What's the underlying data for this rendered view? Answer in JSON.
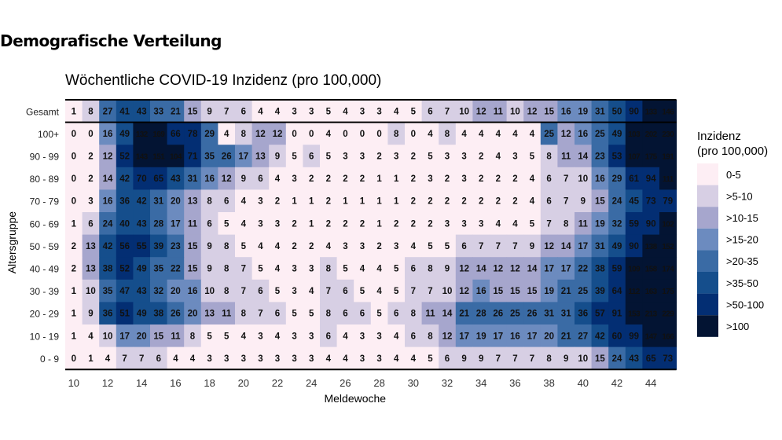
{
  "page": {
    "heading": "Demografische Verteilung"
  },
  "chart_data": {
    "type": "heatmap",
    "title": "Wöchentliche COVID-19 Inzidenz (pro 100,000)",
    "xlabel": "Meldewoche",
    "ylabel": "Altersgruppe",
    "x": [
      10,
      11,
      12,
      13,
      14,
      15,
      16,
      17,
      18,
      19,
      20,
      21,
      22,
      23,
      24,
      25,
      26,
      27,
      28,
      29,
      30,
      31,
      32,
      33,
      34,
      35,
      36,
      37,
      38,
      39,
      40,
      41,
      42,
      43,
      44,
      45
    ],
    "x_ticks": [
      10,
      12,
      14,
      16,
      18,
      20,
      22,
      24,
      26,
      28,
      30,
      32,
      34,
      36,
      38,
      40,
      42,
      44
    ],
    "rows": [
      {
        "label": "Gesamt",
        "values": [
          1,
          8,
          27,
          41,
          43,
          33,
          21,
          15,
          9,
          7,
          6,
          4,
          4,
          3,
          3,
          5,
          4,
          3,
          3,
          4,
          5,
          6,
          7,
          10,
          12,
          11,
          10,
          12,
          15,
          16,
          19,
          31,
          50,
          90,
          133,
          146
        ]
      },
      {
        "label": "100+",
        "values": [
          0,
          0,
          16,
          49,
          132,
          169,
          66,
          78,
          29,
          4,
          8,
          12,
          12,
          0,
          0,
          4,
          0,
          0,
          0,
          8,
          0,
          4,
          8,
          4,
          4,
          4,
          4,
          4,
          25,
          12,
          16,
          25,
          49,
          103,
          202,
          230
        ]
      },
      {
        "label": "90 - 99",
        "values": [
          0,
          2,
          12,
          52,
          143,
          151,
          104,
          71,
          35,
          26,
          17,
          13,
          9,
          5,
          6,
          5,
          3,
          3,
          2,
          3,
          2,
          5,
          3,
          3,
          2,
          4,
          3,
          5,
          8,
          11,
          14,
          23,
          53,
          107,
          175,
          191
        ]
      },
      {
        "label": "80 - 89",
        "values": [
          0,
          2,
          14,
          42,
          70,
          65,
          43,
          31,
          16,
          12,
          9,
          6,
          4,
          3,
          2,
          2,
          2,
          2,
          1,
          1,
          2,
          3,
          2,
          3,
          2,
          2,
          2,
          4,
          6,
          7,
          10,
          16,
          29,
          61,
          94,
          111
        ]
      },
      {
        "label": "70 - 79",
        "values": [
          0,
          3,
          16,
          36,
          42,
          31,
          20,
          13,
          8,
          6,
          4,
          3,
          2,
          1,
          1,
          2,
          1,
          1,
          1,
          1,
          2,
          2,
          2,
          2,
          2,
          2,
          2,
          4,
          6,
          7,
          9,
          15,
          24,
          45,
          73,
          79
        ]
      },
      {
        "label": "60 - 69",
        "values": [
          1,
          6,
          24,
          40,
          43,
          28,
          17,
          11,
          6,
          5,
          4,
          3,
          3,
          2,
          1,
          2,
          2,
          2,
          1,
          2,
          2,
          2,
          3,
          3,
          3,
          4,
          4,
          5,
          7,
          8,
          11,
          19,
          32,
          59,
          90,
          102
        ]
      },
      {
        "label": "50 - 59",
        "values": [
          2,
          13,
          42,
          56,
          55,
          39,
          23,
          15,
          9,
          8,
          5,
          4,
          4,
          2,
          2,
          4,
          3,
          3,
          2,
          3,
          4,
          5,
          5,
          6,
          7,
          7,
          7,
          9,
          12,
          14,
          17,
          31,
          49,
          90,
          138,
          152
        ]
      },
      {
        "label": "40 - 49",
        "values": [
          2,
          13,
          38,
          52,
          49,
          35,
          22,
          15,
          9,
          8,
          7,
          5,
          4,
          3,
          3,
          8,
          5,
          4,
          4,
          5,
          6,
          8,
          9,
          12,
          14,
          12,
          12,
          14,
          17,
          17,
          22,
          38,
          59,
          109,
          158,
          174
        ]
      },
      {
        "label": "30 - 39",
        "values": [
          1,
          10,
          35,
          47,
          43,
          32,
          20,
          16,
          10,
          8,
          7,
          6,
          5,
          3,
          4,
          7,
          6,
          5,
          4,
          5,
          7,
          7,
          10,
          12,
          16,
          15,
          15,
          15,
          19,
          21,
          25,
          39,
          64,
          112,
          163,
          175
        ]
      },
      {
        "label": "20 - 29",
        "values": [
          1,
          9,
          36,
          51,
          49,
          38,
          26,
          20,
          13,
          11,
          8,
          7,
          6,
          5,
          5,
          8,
          6,
          6,
          5,
          6,
          8,
          11,
          14,
          21,
          28,
          26,
          25,
          26,
          31,
          31,
          36,
          57,
          91,
          153,
          213,
          229
        ]
      },
      {
        "label": "10 - 19",
        "values": [
          1,
          4,
          10,
          17,
          20,
          15,
          11,
          8,
          5,
          5,
          4,
          3,
          4,
          3,
          3,
          6,
          4,
          3,
          3,
          4,
          6,
          8,
          12,
          17,
          19,
          17,
          16,
          17,
          20,
          21,
          27,
          42,
          60,
          99,
          147,
          166
        ]
      },
      {
        "label": "0 - 9",
        "values": [
          0,
          1,
          4,
          7,
          7,
          6,
          4,
          4,
          3,
          3,
          3,
          3,
          3,
          3,
          3,
          4,
          4,
          3,
          3,
          4,
          4,
          5,
          6,
          9,
          9,
          7,
          7,
          7,
          8,
          9,
          10,
          15,
          24,
          43,
          65,
          73
        ]
      }
    ],
    "legend": {
      "title_line1": "Inzidenz",
      "title_line2": "(pro 100,000)",
      "placement": "right",
      "bins": [
        {
          "label": "0-5",
          "max": 5,
          "color": "#fdeef4"
        },
        {
          "label": ">5-10",
          "max": 10,
          "color": "#d7cfe4"
        },
        {
          "label": ">10-15",
          "max": 15,
          "color": "#a6a6cd"
        },
        {
          "label": ">15-20",
          "max": 20,
          "color": "#6c8bbf"
        },
        {
          "label": ">20-35",
          "max": 35,
          "color": "#3a6ba5"
        },
        {
          "label": ">35-50",
          "max": 50,
          "color": "#154e8c"
        },
        {
          "label": ">50-100",
          "max": 100,
          "color": "#032e73"
        },
        {
          "label": ">100",
          "max": null,
          "color": "#031433"
        }
      ]
    }
  }
}
